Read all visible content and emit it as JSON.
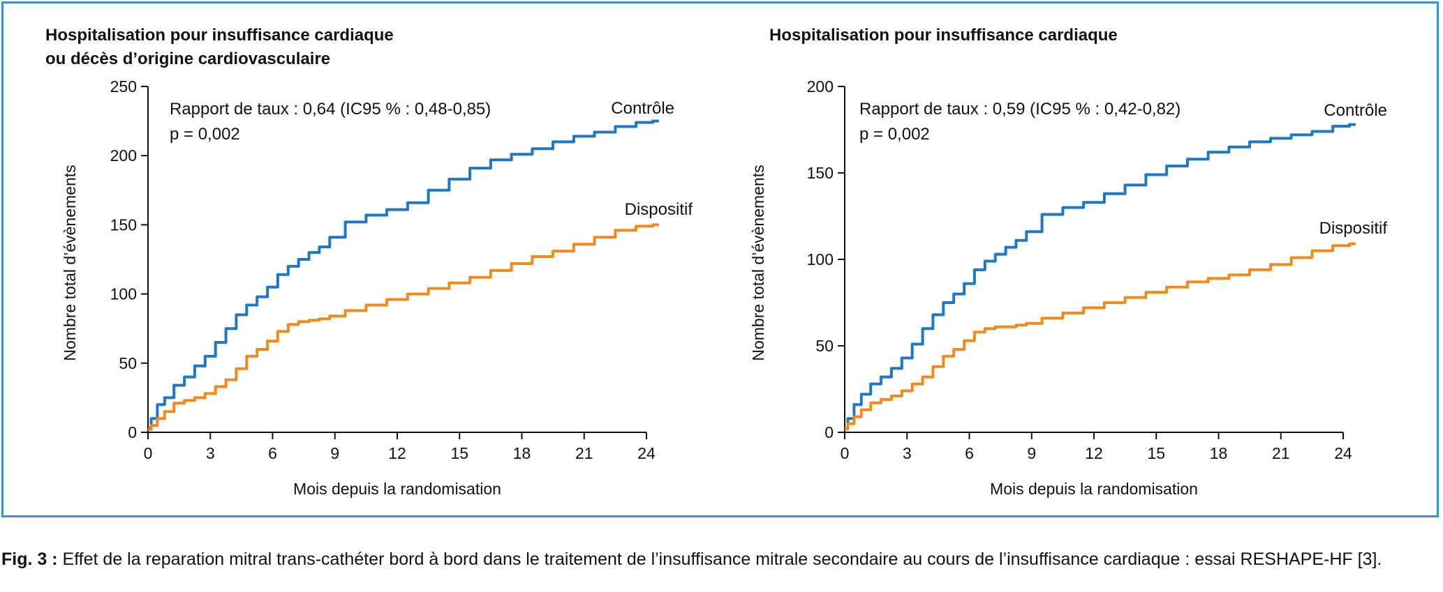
{
  "caption": {
    "label": "Fig. 3 :",
    "text": "Effet de la reparation mitral trans-cathéter bord à bord dans le traitement de l’insuffisance mitrale secondaire au cours de l’insuffisance cardiaque : essai RESHAPE-HF [3]."
  },
  "colors": {
    "control": "#1f78c1",
    "device": "#f08a1c",
    "frame": "#3a8fd6"
  },
  "chart_data": [
    {
      "type": "line",
      "title": [
        "Hospitalisation pour insuffisance cardiaque",
        "ou décès d’origine cardiovasculaire"
      ],
      "xlabel": "Mois depuis la randomisation",
      "ylabel": "Nombre total d’évènements",
      "xlim": [
        0,
        24.6
      ],
      "ylim": [
        0,
        250
      ],
      "xticks": [
        0,
        3,
        6,
        9,
        12,
        15,
        18,
        21,
        24
      ],
      "yticks": [
        0,
        50,
        100,
        150,
        200,
        250
      ],
      "annotation": [
        "Rapport de taux : 0,64 (IC95 % : 0,48-0,85)",
        "p = 0,002"
      ],
      "series": [
        {
          "name": "Contrôle",
          "color": "#1f78c1",
          "x": [
            0,
            0.3,
            0.6,
            1,
            1.5,
            2,
            2.5,
            3,
            3.5,
            4,
            4.5,
            5,
            5.5,
            6,
            6.5,
            7,
            7.5,
            8,
            8.5,
            9,
            10,
            11,
            12,
            13,
            14,
            15,
            16,
            17,
            18,
            19,
            20,
            21,
            22,
            23,
            24,
            24.6
          ],
          "y": [
            3,
            10,
            20,
            25,
            34,
            40,
            48,
            55,
            65,
            75,
            85,
            92,
            98,
            105,
            114,
            120,
            125,
            130,
            134,
            141,
            152,
            157,
            161,
            166,
            175,
            183,
            191,
            197,
            201,
            205,
            210,
            214,
            217,
            221,
            224,
            225
          ]
        },
        {
          "name": "Dispositif",
          "color": "#f08a1c",
          "x": [
            0,
            0.3,
            0.6,
            1,
            1.5,
            2,
            2.5,
            3,
            3.5,
            4,
            4.5,
            5,
            5.5,
            6,
            6.5,
            7,
            7.5,
            8,
            8.5,
            9,
            10,
            11,
            12,
            13,
            14,
            15,
            16,
            17,
            18,
            19,
            20,
            21,
            22,
            23,
            24,
            24.6
          ],
          "y": [
            2,
            5,
            10,
            15,
            21,
            23,
            25,
            28,
            33,
            38,
            46,
            55,
            60,
            66,
            73,
            78,
            80,
            81,
            82,
            84,
            88,
            92,
            96,
            100,
            104,
            108,
            112,
            117,
            122,
            127,
            131,
            136,
            141,
            146,
            149,
            150
          ]
        }
      ]
    },
    {
      "type": "line",
      "title": [
        "Hospitalisation pour insuffisance cardiaque"
      ],
      "xlabel": "Mois depuis la randomisation",
      "ylabel": "Nombre total d’évènements",
      "xlim": [
        0,
        24.6
      ],
      "ylim": [
        0,
        200
      ],
      "xticks": [
        0,
        3,
        6,
        9,
        12,
        15,
        18,
        21,
        24
      ],
      "yticks": [
        0,
        50,
        100,
        150,
        200
      ],
      "annotation": [
        "Rapport de taux : 0,59 (IC95 % : 0,42-0,82)",
        "p = 0,002"
      ],
      "series": [
        {
          "name": "Contrôle",
          "color": "#1f78c1",
          "x": [
            0,
            0.3,
            0.6,
            1,
            1.5,
            2,
            2.5,
            3,
            3.5,
            4,
            4.5,
            5,
            5.5,
            6,
            6.5,
            7,
            7.5,
            8,
            8.5,
            9,
            10,
            11,
            12,
            13,
            14,
            15,
            16,
            17,
            18,
            19,
            20,
            21,
            22,
            23,
            24,
            24.6
          ],
          "y": [
            2,
            8,
            16,
            22,
            28,
            32,
            37,
            43,
            51,
            60,
            68,
            75,
            80,
            86,
            94,
            99,
            103,
            107,
            111,
            116,
            126,
            130,
            133,
            138,
            143,
            149,
            154,
            158,
            162,
            165,
            168,
            170,
            172,
            174,
            177,
            178
          ]
        },
        {
          "name": "Dispositif",
          "color": "#f08a1c",
          "x": [
            0,
            0.3,
            0.6,
            1,
            1.5,
            2,
            2.5,
            3,
            3.5,
            4,
            4.5,
            5,
            5.5,
            6,
            6.5,
            7,
            7.5,
            8,
            8.5,
            9,
            10,
            11,
            12,
            13,
            14,
            15,
            16,
            17,
            18,
            19,
            20,
            21,
            22,
            23,
            24,
            24.6
          ],
          "y": [
            2,
            5,
            9,
            13,
            17,
            19,
            21,
            24,
            28,
            32,
            38,
            44,
            48,
            53,
            58,
            60,
            61,
            61,
            62,
            63,
            66,
            69,
            72,
            75,
            78,
            81,
            84,
            87,
            89,
            91,
            94,
            97,
            101,
            105,
            108,
            109
          ]
        }
      ]
    }
  ]
}
